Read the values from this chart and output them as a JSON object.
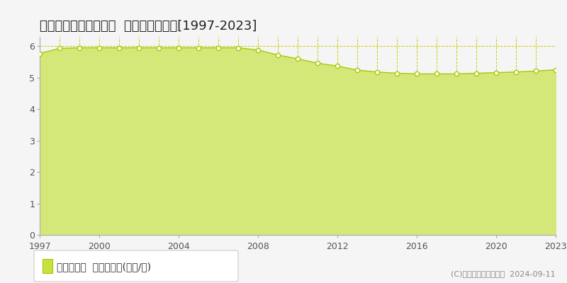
{
  "title": "東臼杵郡門川町庵川西  基準地価格推移[1997-2023]",
  "years": [
    1997,
    1998,
    1999,
    2000,
    2001,
    2002,
    2003,
    2004,
    2005,
    2006,
    2007,
    2008,
    2009,
    2010,
    2011,
    2012,
    2013,
    2014,
    2015,
    2016,
    2017,
    2018,
    2019,
    2020,
    2021,
    2022,
    2023
  ],
  "values": [
    5.77,
    5.93,
    5.95,
    5.95,
    5.95,
    5.95,
    5.95,
    5.95,
    5.95,
    5.95,
    5.95,
    5.88,
    5.72,
    5.6,
    5.46,
    5.37,
    5.24,
    5.18,
    5.14,
    5.12,
    5.12,
    5.12,
    5.14,
    5.16,
    5.18,
    5.21,
    5.25
  ],
  "line_color": "#a8c800",
  "fill_color": "#d4e87a",
  "marker_face": "#ffffff",
  "marker_edge": "#a8c800",
  "background_color": "#f5f5f5",
  "plot_bg_color": "#f0f0f0",
  "grid_color": "#c8c800",
  "axis_color": "#aaaaaa",
  "ylim": [
    0,
    6.3
  ],
  "yticks": [
    0,
    1,
    2,
    3,
    4,
    5,
    6
  ],
  "xtick_years": [
    1997,
    2000,
    2004,
    2008,
    2012,
    2016,
    2020,
    2023
  ],
  "all_years_for_vgrid": [
    1997,
    1998,
    1999,
    2000,
    2001,
    2002,
    2003,
    2004,
    2005,
    2006,
    2007,
    2008,
    2009,
    2010,
    2011,
    2012,
    2013,
    2014,
    2015,
    2016,
    2017,
    2018,
    2019,
    2020,
    2021,
    2022,
    2023
  ],
  "legend_label": "基準地価格  平均坪単価(万円/坪)",
  "legend_marker_color": "#c8e040",
  "copyright_text": "(C)土地価格ドットコム  2024-09-11",
  "title_fontsize": 13,
  "tick_fontsize": 9,
  "legend_fontsize": 10,
  "copyright_fontsize": 8
}
